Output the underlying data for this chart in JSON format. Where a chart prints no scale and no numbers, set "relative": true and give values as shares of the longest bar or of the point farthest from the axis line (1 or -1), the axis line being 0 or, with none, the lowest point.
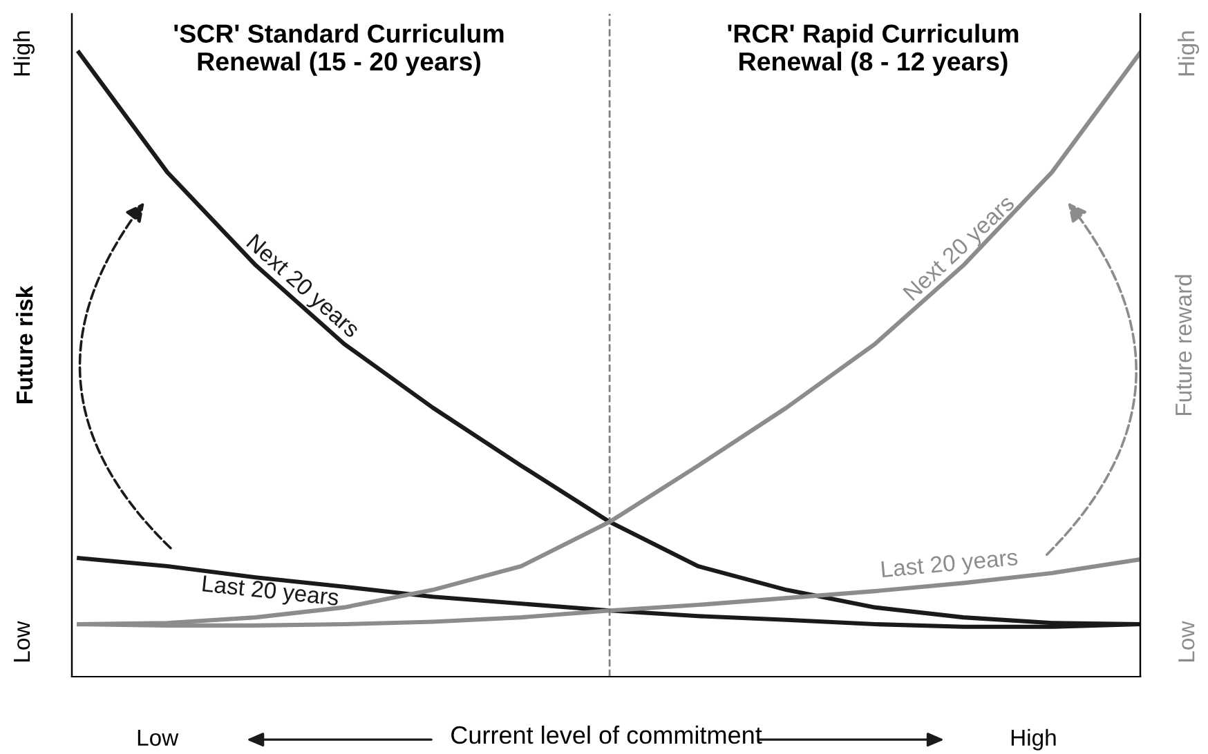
{
  "chart_data": {
    "type": "line",
    "relative": true,
    "ylabel": "Future risk",
    "y2label": "Future reward",
    "xlabel": "Current level of commitment",
    "annotations": [
      "'SCR' Standard Curriculum\nRenewal (15 - 20 years)",
      "'RCR' Rapid Curriculum\nRenewal (8 - 12 years)",
      "Low",
      "High",
      "Low",
      "High",
      "Low",
      "High"
    ],
    "categories": [
      null,
      null,
      null,
      null,
      null,
      null,
      null,
      null,
      null,
      null,
      null,
      null,
      null
    ],
    "ref_lines": [
      {
        "axis": "x",
        "label": null,
        "color": "#808080",
        "line_style": "dashed"
      }
    ],
    "marker": "none",
    "line_style": "solid",
    "series": [
      {
        "name": "Next 20 years",
        "color": "#1a1a1a",
        "values": [
          1.0,
          0.808,
          0.659,
          0.533,
          0.431,
          0.338,
          0.248,
          0.177,
          0.139,
          0.111,
          0.095,
          0.086,
          0.084
        ]
      },
      {
        "name": "Last 20 years",
        "color": "#1a1a1a",
        "values": [
          0.19,
          0.177,
          0.159,
          0.144,
          0.128,
          0.117,
          0.106,
          0.097,
          0.091,
          0.084,
          0.08,
          0.08,
          0.084
        ]
      },
      {
        "name": "Next 20 years",
        "color": "#8c8c8c",
        "values": [
          0.084,
          0.086,
          0.095,
          0.111,
          0.139,
          0.177,
          0.248,
          0.338,
          0.431,
          0.533,
          0.659,
          0.808,
          1.0
        ]
      },
      {
        "name": "Last 20 years",
        "color": "#8c8c8c",
        "values": [
          0.084,
          0.082,
          0.082,
          0.084,
          0.088,
          0.095,
          0.106,
          0.115,
          0.126,
          0.137,
          0.15,
          0.166,
          0.188
        ]
      }
    ]
  }
}
